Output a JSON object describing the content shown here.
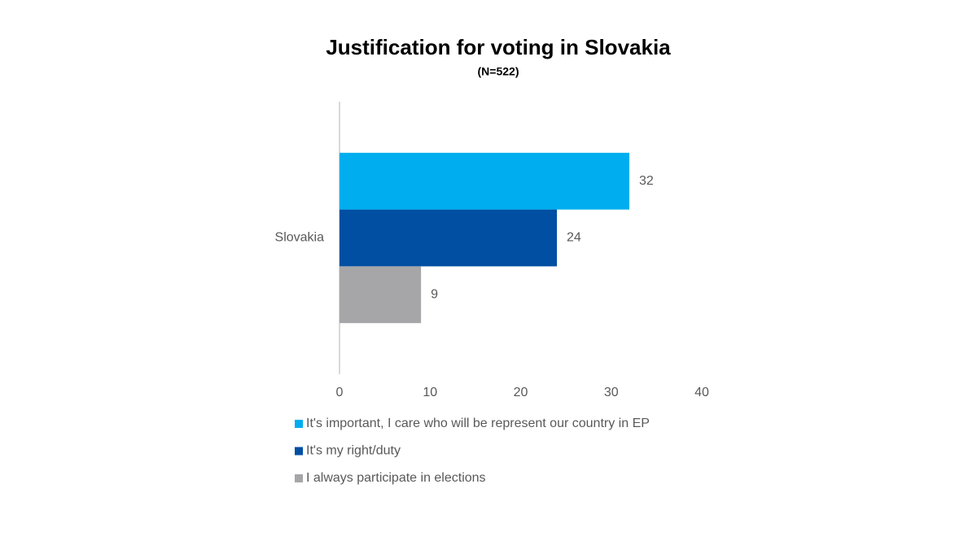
{
  "chart_data": {
    "type": "bar",
    "orientation": "horizontal",
    "title": "Justification for voting in Slovakia",
    "subtitle": "(N=522)",
    "categories": [
      "Slovakia"
    ],
    "series": [
      {
        "name": "It's important, I care who will be represent our country in EP",
        "color": "#00adee",
        "values": [
          32
        ]
      },
      {
        "name": "It's my right/duty",
        "color": "#004fa3",
        "values": [
          24
        ]
      },
      {
        "name": "I always participate in elections",
        "color": "#a6a6a8",
        "values": [
          9
        ]
      }
    ],
    "xlim": [
      0,
      40
    ],
    "xticks": [
      0,
      10,
      20,
      30,
      40
    ],
    "grid": false,
    "legend": "bottom"
  }
}
